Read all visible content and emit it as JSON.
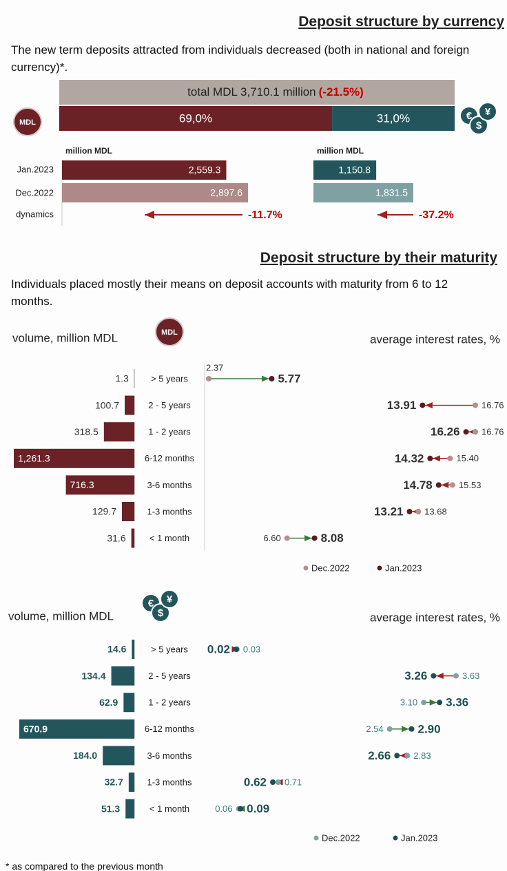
{
  "currency": {
    "title": "Deposit structure  by currency",
    "subtitle": "The new term deposits attracted from individuals decreased (both in national and foreign currency)*.",
    "total_label": "total MDL 3,710.1 million",
    "total_change": -21.5,
    "total_change_label": "(-21.5%)",
    "shares": [
      {
        "value": 69.0,
        "label": "69,0%",
        "color": "#6b2226"
      },
      {
        "value": 31.0,
        "label": "31,0%",
        "color": "#23565c"
      }
    ],
    "mdl_icon": "MDL",
    "currency_symbols": [
      "€",
      "$",
      "¥"
    ],
    "periods": [
      "Jan.2023",
      "Dec.2022",
      "dynamics"
    ],
    "mdl": {
      "unit": "million MDL",
      "values": [
        2559.3,
        2897.6
      ],
      "value_labels": [
        "2,559.3",
        "2,897.6"
      ],
      "colors": [
        "#6b2226",
        "#ad8a87"
      ],
      "change": -11.7,
      "change_label": "-11.7%"
    },
    "foreign": {
      "unit": "million MDL",
      "values": [
        1150.8,
        1831.5
      ],
      "value_labels": [
        "1,150.8",
        "1,831.5"
      ],
      "colors": [
        "#23565c",
        "#7fa1a4"
      ],
      "change": -37.2,
      "change_label": "-37.2%"
    }
  },
  "maturity": {
    "title": "Deposit structure by their maturity",
    "subtitle": "Individuals placed mostly their means on deposit accounts with maturity from 6 to 12 months.",
    "categories": [
      "> 5 years",
      "2 - 5 years",
      "1 - 2 years",
      "6-12 months",
      "3-6 months",
      "1-3 months",
      "< 1 month"
    ],
    "panels": [
      {
        "icon": "MDL",
        "volume_label": "volume, million MDL",
        "rates_label": "average interest rates, %",
        "volumes": [
          1.3,
          100.7,
          318.5,
          1261.3,
          716.3,
          129.7,
          31.6
        ],
        "volume_labels": [
          "1.3",
          "100.7",
          "318.5",
          "1,261.3",
          "716.3",
          "129.7",
          "31.6"
        ],
        "rates_dec": [
          2.37,
          16.76,
          16.76,
          15.4,
          15.53,
          13.68,
          6.6
        ],
        "rates_dec_labels": [
          "2.37",
          "16.76",
          "16.76",
          "15.40",
          "15.53",
          "13.68",
          "6.60"
        ],
        "rates_jan": [
          5.77,
          13.91,
          16.26,
          14.32,
          14.78,
          13.21,
          8.08
        ],
        "rates_jan_labels": [
          "5.77",
          "13.91",
          "16.26",
          "14.32",
          "14.78",
          "13.21",
          "8.08"
        ],
        "legend": [
          "Dec.2022",
          "Jan.2023"
        ],
        "colors": {
          "bar": "#6b2226",
          "dec": "#b58f8c",
          "jan": "#5a1a1e"
        }
      },
      {
        "volume_label": "volume, million MDL",
        "rates_label": "average interest rates, %",
        "volumes": [
          14.6,
          134.4,
          62.9,
          670.9,
          184.0,
          32.7,
          51.3
        ],
        "volume_labels": [
          "14.6",
          "134.4",
          "62.9",
          "670.9",
          "184.0",
          "32.7",
          "51.3"
        ],
        "rates_dec": [
          0.03,
          3.63,
          3.1,
          2.54,
          2.83,
          0.71,
          0.06
        ],
        "rates_dec_labels": [
          "0.03",
          "3.63",
          "3.10",
          "2.54",
          "2.83",
          "0.71",
          "0.06"
        ],
        "rates_jan": [
          0.02,
          3.26,
          3.36,
          2.9,
          2.66,
          0.62,
          0.09
        ],
        "rates_jan_labels": [
          "0.02",
          "3.26",
          "3.36",
          "2.90",
          "2.66",
          "0.62",
          "0.09"
        ],
        "legend": [
          "Dec.2022",
          "Jan.2023"
        ],
        "colors": {
          "bar": "#23565c",
          "dec": "#7fa3a3",
          "jan": "#1f4f55"
        }
      }
    ]
  },
  "footnote": "* as compared to the previous month"
}
